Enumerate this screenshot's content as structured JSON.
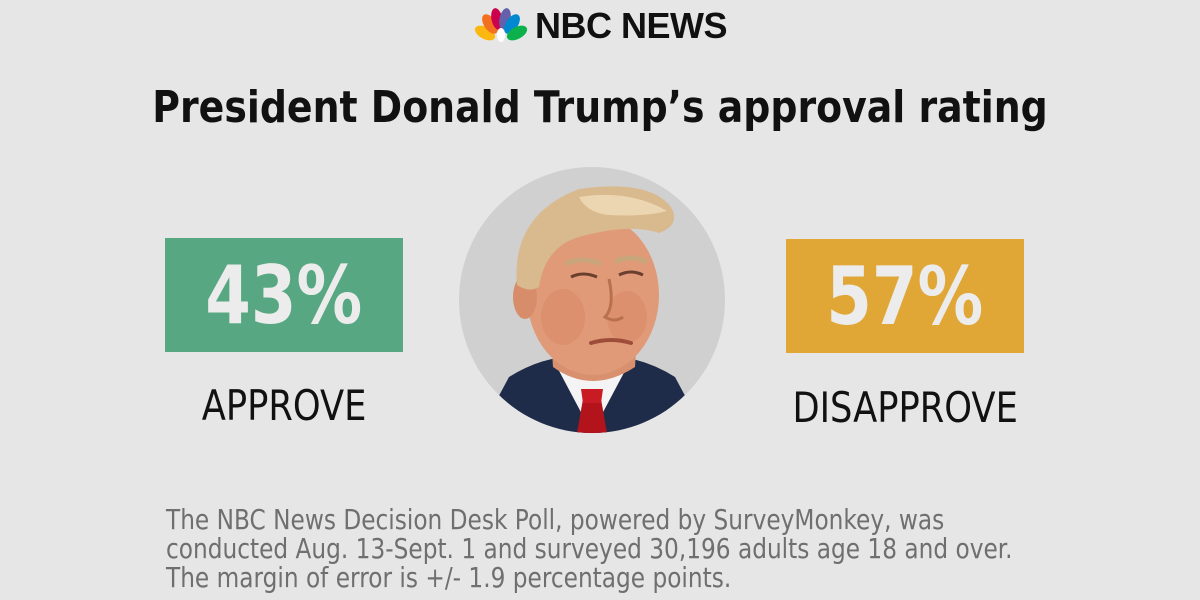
{
  "brand": {
    "logo_text": "NBC NEWS"
  },
  "title": "President Donald Trump’s approval rating",
  "approve": {
    "value": "43%",
    "label": "APPROVE",
    "color": "#57a882"
  },
  "disapprove": {
    "value": "57%",
    "label": "DISAPPROVE",
    "color": "#e0a737"
  },
  "footnote": {
    "lines": [
      "The NBC News Decision Desk Poll, powered by SurveyMonkey, was",
      "conducted Aug. 13-Sept. 1 and surveyed 30,196 adults age 18 and over.",
      "The margin of error is +/- 1.9 percentage points."
    ]
  },
  "icons": {
    "logo": "nbc-peacock-icon",
    "portrait": "portrait-photo"
  }
}
